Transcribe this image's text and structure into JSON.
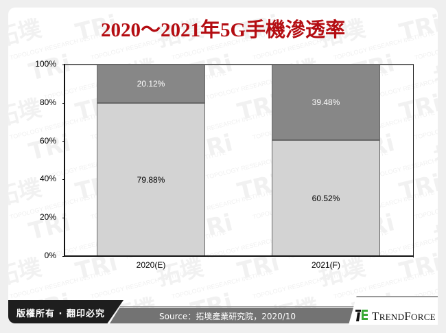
{
  "title": "2020～2021年5G手機滲透率",
  "chart_data": {
    "type": "bar",
    "stacked": true,
    "title": "2020～2021年5G手機滲透率",
    "categories": [
      "2020(E)",
      "2021(F)"
    ],
    "series": [
      {
        "name": "bottom",
        "color": "#d3d3d3",
        "values": [
          79.88,
          60.52
        ],
        "labels": [
          "79.88%",
          "60.52%"
        ]
      },
      {
        "name": "top",
        "color": "#878787",
        "values": [
          20.12,
          39.48
        ],
        "labels": [
          "20.12%",
          "39.48%"
        ]
      }
    ],
    "xlabel": "",
    "ylabel": "",
    "ylim": [
      0,
      100
    ],
    "yticks": [
      "0%",
      "20%",
      "40%",
      "60%",
      "80%",
      "100%"
    ],
    "grid": false,
    "legend": "none"
  },
  "footer": {
    "copyright": "版權所有 · 翻印必究",
    "source": "Source：拓墣產業研究院，2020/10",
    "logo": "TrendForce"
  },
  "watermark": {
    "cn": "拓墣",
    "en": "TRi",
    "sub": "TOPOLOGY RESEARCH INSTITUTE"
  },
  "colors": {
    "title": "#b40d12",
    "bar_top": "#878787",
    "bar_bottom": "#d3d3d3",
    "logo_green": "#3aa935"
  }
}
